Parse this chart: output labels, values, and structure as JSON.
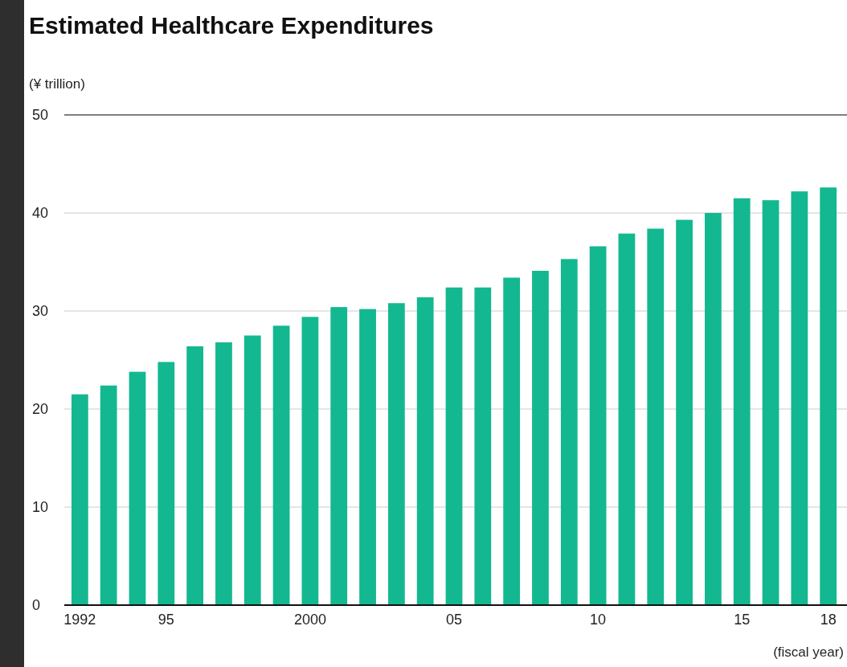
{
  "chart_data": {
    "type": "bar",
    "title": "Estimated Healthcare Expenditures",
    "ylabel": "(¥ trillion)",
    "xlabel": "(fiscal year)",
    "categories": [
      "1992",
      null,
      null,
      "95",
      null,
      null,
      null,
      null,
      "2000",
      null,
      null,
      null,
      null,
      "05",
      null,
      null,
      null,
      null,
      "10",
      null,
      null,
      null,
      null,
      "15",
      null,
      null,
      "18"
    ],
    "values": [
      21.5,
      22.4,
      23.8,
      24.8,
      26.4,
      26.8,
      27.5,
      28.5,
      29.4,
      30.4,
      30.2,
      30.8,
      31.4,
      32.4,
      32.4,
      33.4,
      34.1,
      35.3,
      36.6,
      37.9,
      38.4,
      39.3,
      40.0,
      41.5,
      41.3,
      42.2,
      42.6
    ],
    "color": "#13b890",
    "ylim": [
      0,
      50
    ],
    "yticks": [
      0,
      10,
      20,
      30,
      40,
      50
    ],
    "grid": "y"
  }
}
